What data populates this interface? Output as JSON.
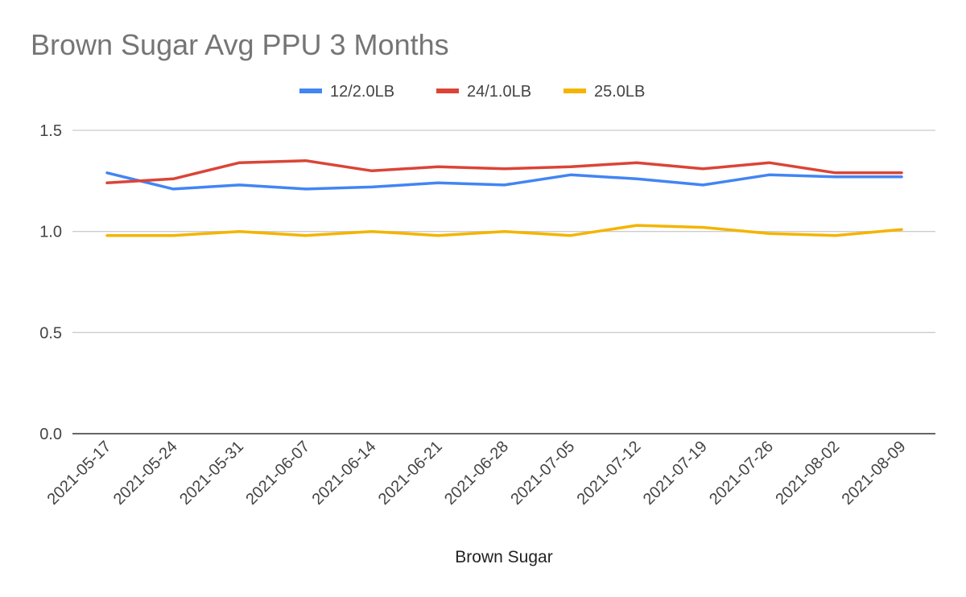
{
  "chart_data": {
    "type": "line",
    "title": "Brown Sugar Avg PPU 3 Months",
    "xlabel": "Brown Sugar",
    "ylabel": "",
    "ylim": [
      0,
      1.5
    ],
    "yticks": [
      "0.0",
      "0.5",
      "1.0",
      "1.5"
    ],
    "grid": true,
    "legend_position": "top",
    "x": [
      "2021-05-17",
      "2021-05-24",
      "2021-05-31",
      "2021-06-07",
      "2021-06-14",
      "2021-06-21",
      "2021-06-28",
      "2021-07-05",
      "2021-07-12",
      "2021-07-19",
      "2021-07-26",
      "2021-08-02",
      "2021-08-09"
    ],
    "series": [
      {
        "name": "12/2.0LB",
        "color": "#4285f4",
        "values": [
          1.29,
          1.21,
          1.23,
          1.21,
          1.22,
          1.24,
          1.23,
          1.28,
          1.26,
          1.23,
          1.28,
          1.27,
          1.27
        ]
      },
      {
        "name": "24/1.0LB",
        "color": "#db4437",
        "values": [
          1.24,
          1.26,
          1.34,
          1.35,
          1.3,
          1.32,
          1.31,
          1.32,
          1.34,
          1.31,
          1.34,
          1.29,
          1.29
        ]
      },
      {
        "name": "25.0LB",
        "color": "#f4b400",
        "values": [
          0.98,
          0.98,
          1.0,
          0.98,
          1.0,
          0.98,
          1.0,
          0.98,
          1.03,
          1.02,
          0.99,
          0.98,
          1.01
        ]
      }
    ]
  }
}
